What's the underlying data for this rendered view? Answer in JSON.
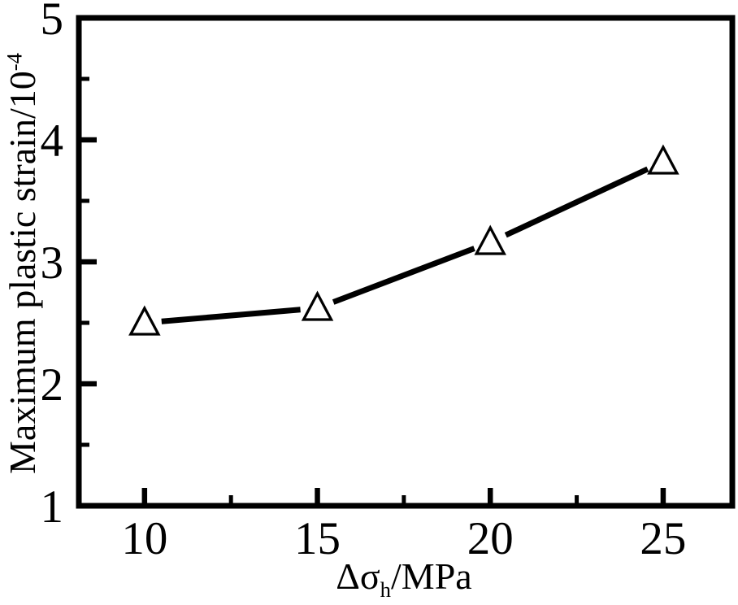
{
  "figure": {
    "background_color": "#ffffff",
    "axis_color": "#000000",
    "has_legend": false,
    "has_grid": false,
    "has_title": false
  },
  "chart_data": {
    "type": "line",
    "title": "",
    "xlabel": "Δσh/MPa",
    "xlabel_main": "Δσ",
    "xlabel_sub": "h",
    "xlabel_rest": "/MPa",
    "ylabel": "Maximum plastic strain/10^-4",
    "ylabel_main": "Maximum plastic strain/10",
    "ylabel_sup": "-4",
    "x": [
      10,
      15,
      20,
      25
    ],
    "y": [
      2.5,
      2.62,
      3.16,
      3.82
    ],
    "xlim": [
      8.1,
      27.0
    ],
    "ylim": [
      1,
      5
    ],
    "x_major_ticks": [
      10,
      15,
      20,
      25
    ],
    "x_minor_ticks": [
      12.5,
      17.5,
      22.5
    ],
    "y_major_ticks": [
      1,
      2,
      3,
      4,
      5
    ],
    "y_minor_ticks": [
      1.5,
      2.5,
      3.5,
      4.5
    ],
    "grid": false,
    "legend_position": "none",
    "line_color": "#000000",
    "marker": "open-triangle-up",
    "marker_fill": "#ffffff",
    "tick_direction": "in"
  }
}
